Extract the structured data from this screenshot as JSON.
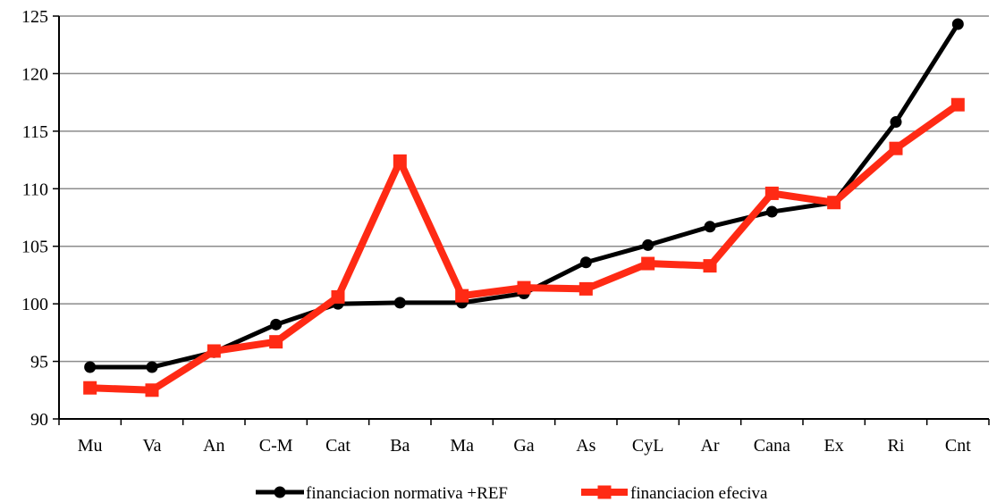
{
  "chart_data": {
    "type": "line",
    "title": "",
    "xlabel": "",
    "ylabel": "",
    "categories": [
      "Mu",
      "Va",
      "An",
      "C-M",
      "Cat",
      "Ba",
      "Ma",
      "Ga",
      "As",
      "CyL",
      "Ar",
      "Cana",
      "Ex",
      "Ri",
      "Cnt"
    ],
    "ylim": [
      90,
      125
    ],
    "yticks": [
      90,
      95,
      100,
      105,
      110,
      115,
      120,
      125
    ],
    "grid": "horizontal",
    "legend_position": "bottom",
    "series": [
      {
        "name": "financiacion normativa +REF",
        "color": "#000000",
        "marker": "circle",
        "values": [
          94.5,
          94.5,
          95.8,
          98.2,
          100.0,
          100.1,
          100.1,
          100.9,
          103.6,
          105.1,
          106.7,
          108.0,
          108.8,
          115.8,
          124.3
        ]
      },
      {
        "name": "financiacion efeciva",
        "color": "#ff2a14",
        "marker": "square",
        "values": [
          92.7,
          92.5,
          95.9,
          96.7,
          100.6,
          112.4,
          100.7,
          101.4,
          101.3,
          103.5,
          103.3,
          109.6,
          108.8,
          113.5,
          117.3
        ]
      }
    ]
  }
}
